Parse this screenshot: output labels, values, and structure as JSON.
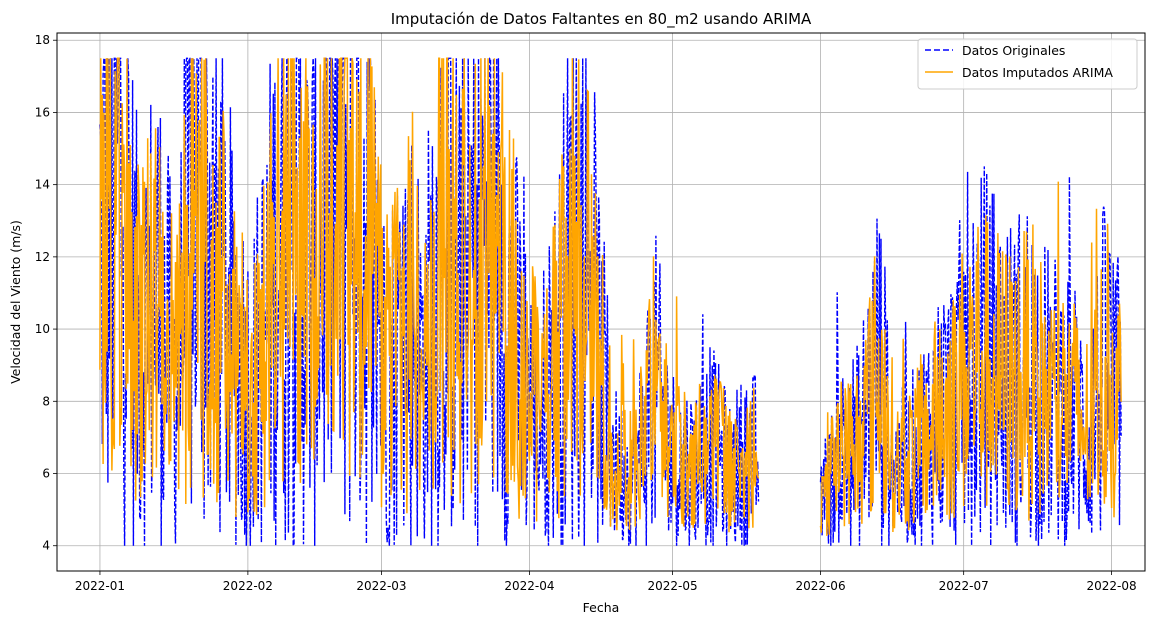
{
  "chart_data": {
    "type": "line",
    "title": "Imputación de Datos Faltantes en 80_m2 usando ARIMA",
    "xlabel": "Fecha",
    "ylabel": "Velocidad del Viento (m/s)",
    "xlim": [
      "2021-12-23",
      "2022-08-08"
    ],
    "ylim": [
      3.3,
      18.2
    ],
    "x_ticks": [
      "2022-01",
      "2022-02",
      "2022-03",
      "2022-04",
      "2022-05",
      "2022-06",
      "2022-07",
      "2022-08"
    ],
    "y_ticks": [
      4,
      6,
      8,
      10,
      12,
      14,
      16,
      18
    ],
    "grid": true,
    "legend_position": "top-right",
    "gap": [
      "2022-05-19",
      "2022-06-01"
    ],
    "series": [
      {
        "name": "Datos Originales",
        "color": "#0000ff",
        "style": "dashed",
        "points": [
          [
            "2022-01-01",
            12.8
          ],
          [
            "2022-01-05",
            14.5
          ],
          [
            "2022-01-09",
            9.5
          ],
          [
            "2022-01-13",
            11.0
          ],
          [
            "2022-01-17",
            8.2
          ],
          [
            "2022-01-21",
            14.3
          ],
          [
            "2022-01-25",
            11.8
          ],
          [
            "2022-01-29",
            9.6
          ],
          [
            "2022-02-02",
            8.2
          ],
          [
            "2022-02-06",
            11.0
          ],
          [
            "2022-02-10",
            14.5
          ],
          [
            "2022-02-14",
            11.0
          ],
          [
            "2022-02-18",
            13.5
          ],
          [
            "2022-02-22",
            14.6
          ],
          [
            "2022-02-26",
            13.2
          ],
          [
            "2022-03-02",
            8.3
          ],
          [
            "2022-03-06",
            10.6
          ],
          [
            "2022-03-10",
            9.0
          ],
          [
            "2022-03-14",
            13.2
          ],
          [
            "2022-03-18",
            11.5
          ],
          [
            "2022-03-22",
            13.2
          ],
          [
            "2022-03-26",
            11.5
          ],
          [
            "2022-03-30",
            9.0
          ],
          [
            "2022-04-03",
            7.5
          ],
          [
            "2022-04-07",
            9.2
          ],
          [
            "2022-04-11",
            13.0
          ],
          [
            "2022-04-15",
            9.5
          ],
          [
            "2022-04-19",
            6.2
          ],
          [
            "2022-04-23",
            5.8
          ],
          [
            "2022-04-27",
            8.5
          ],
          [
            "2022-05-01",
            6.5
          ],
          [
            "2022-05-05",
            6.2
          ],
          [
            "2022-05-09",
            6.8
          ],
          [
            "2022-05-13",
            6.0
          ],
          [
            "2022-05-17",
            6.5
          ],
          [
            "2022-06-01",
            5.0
          ],
          [
            "2022-06-05",
            6.5
          ],
          [
            "2022-06-09",
            6.8
          ],
          [
            "2022-06-13",
            9.0
          ],
          [
            "2022-06-17",
            6.0
          ],
          [
            "2022-06-21",
            6.5
          ],
          [
            "2022-06-25",
            7.5
          ],
          [
            "2022-06-29",
            8.0
          ],
          [
            "2022-07-03",
            9.5
          ],
          [
            "2022-07-07",
            9.0
          ],
          [
            "2022-07-11",
            8.5
          ],
          [
            "2022-07-15",
            9.0
          ],
          [
            "2022-07-19",
            8.0
          ],
          [
            "2022-07-23",
            8.0
          ],
          [
            "2022-07-27",
            7.0
          ],
          [
            "2022-07-31",
            9.0
          ],
          [
            "2022-08-02",
            8.0
          ]
        ]
      },
      {
        "name": "Datos Imputados ARIMA",
        "color": "#ffa500",
        "style": "solid",
        "points": [
          [
            "2022-01-01",
            12.5
          ],
          [
            "2022-01-05",
            14.0
          ],
          [
            "2022-01-09",
            9.8
          ],
          [
            "2022-01-13",
            10.8
          ],
          [
            "2022-01-17",
            8.5
          ],
          [
            "2022-01-21",
            14.0
          ],
          [
            "2022-01-25",
            11.6
          ],
          [
            "2022-01-29",
            9.8
          ],
          [
            "2022-02-02",
            8.5
          ],
          [
            "2022-02-06",
            11.0
          ],
          [
            "2022-02-10",
            14.2
          ],
          [
            "2022-02-14",
            11.0
          ],
          [
            "2022-02-18",
            13.3
          ],
          [
            "2022-02-22",
            14.4
          ],
          [
            "2022-02-26",
            13.0
          ],
          [
            "2022-03-02",
            8.5
          ],
          [
            "2022-03-06",
            10.5
          ],
          [
            "2022-03-10",
            9.2
          ],
          [
            "2022-03-14",
            13.0
          ],
          [
            "2022-03-18",
            11.5
          ],
          [
            "2022-03-22",
            13.0
          ],
          [
            "2022-03-26",
            11.4
          ],
          [
            "2022-03-30",
            9.2
          ],
          [
            "2022-04-03",
            7.8
          ],
          [
            "2022-04-07",
            9.3
          ],
          [
            "2022-04-11",
            12.8
          ],
          [
            "2022-04-15",
            9.4
          ],
          [
            "2022-04-19",
            6.4
          ],
          [
            "2022-04-23",
            6.0
          ],
          [
            "2022-04-27",
            8.4
          ],
          [
            "2022-05-01",
            6.6
          ],
          [
            "2022-05-05",
            6.4
          ],
          [
            "2022-05-09",
            6.9
          ],
          [
            "2022-05-13",
            6.2
          ],
          [
            "2022-05-17",
            6.6
          ],
          [
            "2022-05-19",
            5.0
          ],
          [
            "2022-06-01",
            5.2
          ],
          [
            "2022-06-05",
            6.6
          ],
          [
            "2022-06-09",
            6.9
          ],
          [
            "2022-06-13",
            8.8
          ],
          [
            "2022-06-17",
            6.2
          ],
          [
            "2022-06-21",
            6.6
          ],
          [
            "2022-06-25",
            7.4
          ],
          [
            "2022-06-29",
            8.0
          ],
          [
            "2022-07-03",
            9.3
          ],
          [
            "2022-07-07",
            8.9
          ],
          [
            "2022-07-11",
            8.5
          ],
          [
            "2022-07-15",
            8.9
          ],
          [
            "2022-07-19",
            8.0
          ],
          [
            "2022-07-23",
            8.0
          ],
          [
            "2022-07-27",
            7.2
          ],
          [
            "2022-07-31",
            8.9
          ],
          [
            "2022-08-02",
            8.0
          ]
        ]
      }
    ]
  }
}
